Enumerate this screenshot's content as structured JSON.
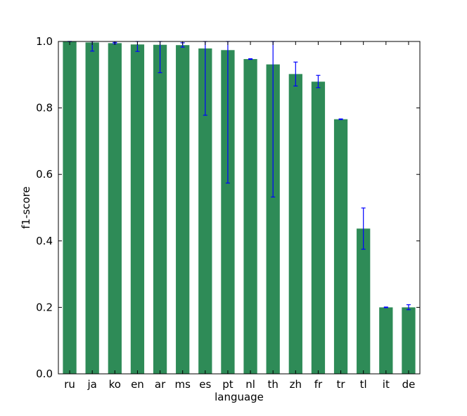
{
  "chart_data": {
    "type": "bar",
    "title": "",
    "xlabel": "language",
    "ylabel": "f1-score",
    "ylim": [
      0.0,
      1.0
    ],
    "yticks": [
      "0.0",
      "0.2",
      "0.4",
      "0.6",
      "0.8",
      "1.0"
    ],
    "grid": false,
    "bar_color": "#2e8b57",
    "error_color": "#0000ff",
    "categories": [
      "ru",
      "ja",
      "ko",
      "en",
      "ar",
      "ms",
      "es",
      "pt",
      "nl",
      "th",
      "zh",
      "fr",
      "tr",
      "tl",
      "it",
      "de"
    ],
    "values": [
      1.0,
      0.997,
      0.995,
      0.991,
      0.99,
      0.989,
      0.979,
      0.974,
      0.947,
      0.931,
      0.902,
      0.879,
      0.766,
      0.437,
      0.2,
      0.2
    ],
    "error_low": [
      1.0,
      0.971,
      0.993,
      0.97,
      0.906,
      0.983,
      0.778,
      0.574,
      0.946,
      0.532,
      0.866,
      0.861,
      0.765,
      0.375,
      0.199,
      0.193
    ],
    "error_high": [
      1.0,
      1.0,
      0.997,
      1.0,
      1.0,
      0.996,
      1.0,
      1.0,
      0.948,
      1.0,
      0.938,
      0.898,
      0.767,
      0.499,
      0.201,
      0.208
    ]
  }
}
